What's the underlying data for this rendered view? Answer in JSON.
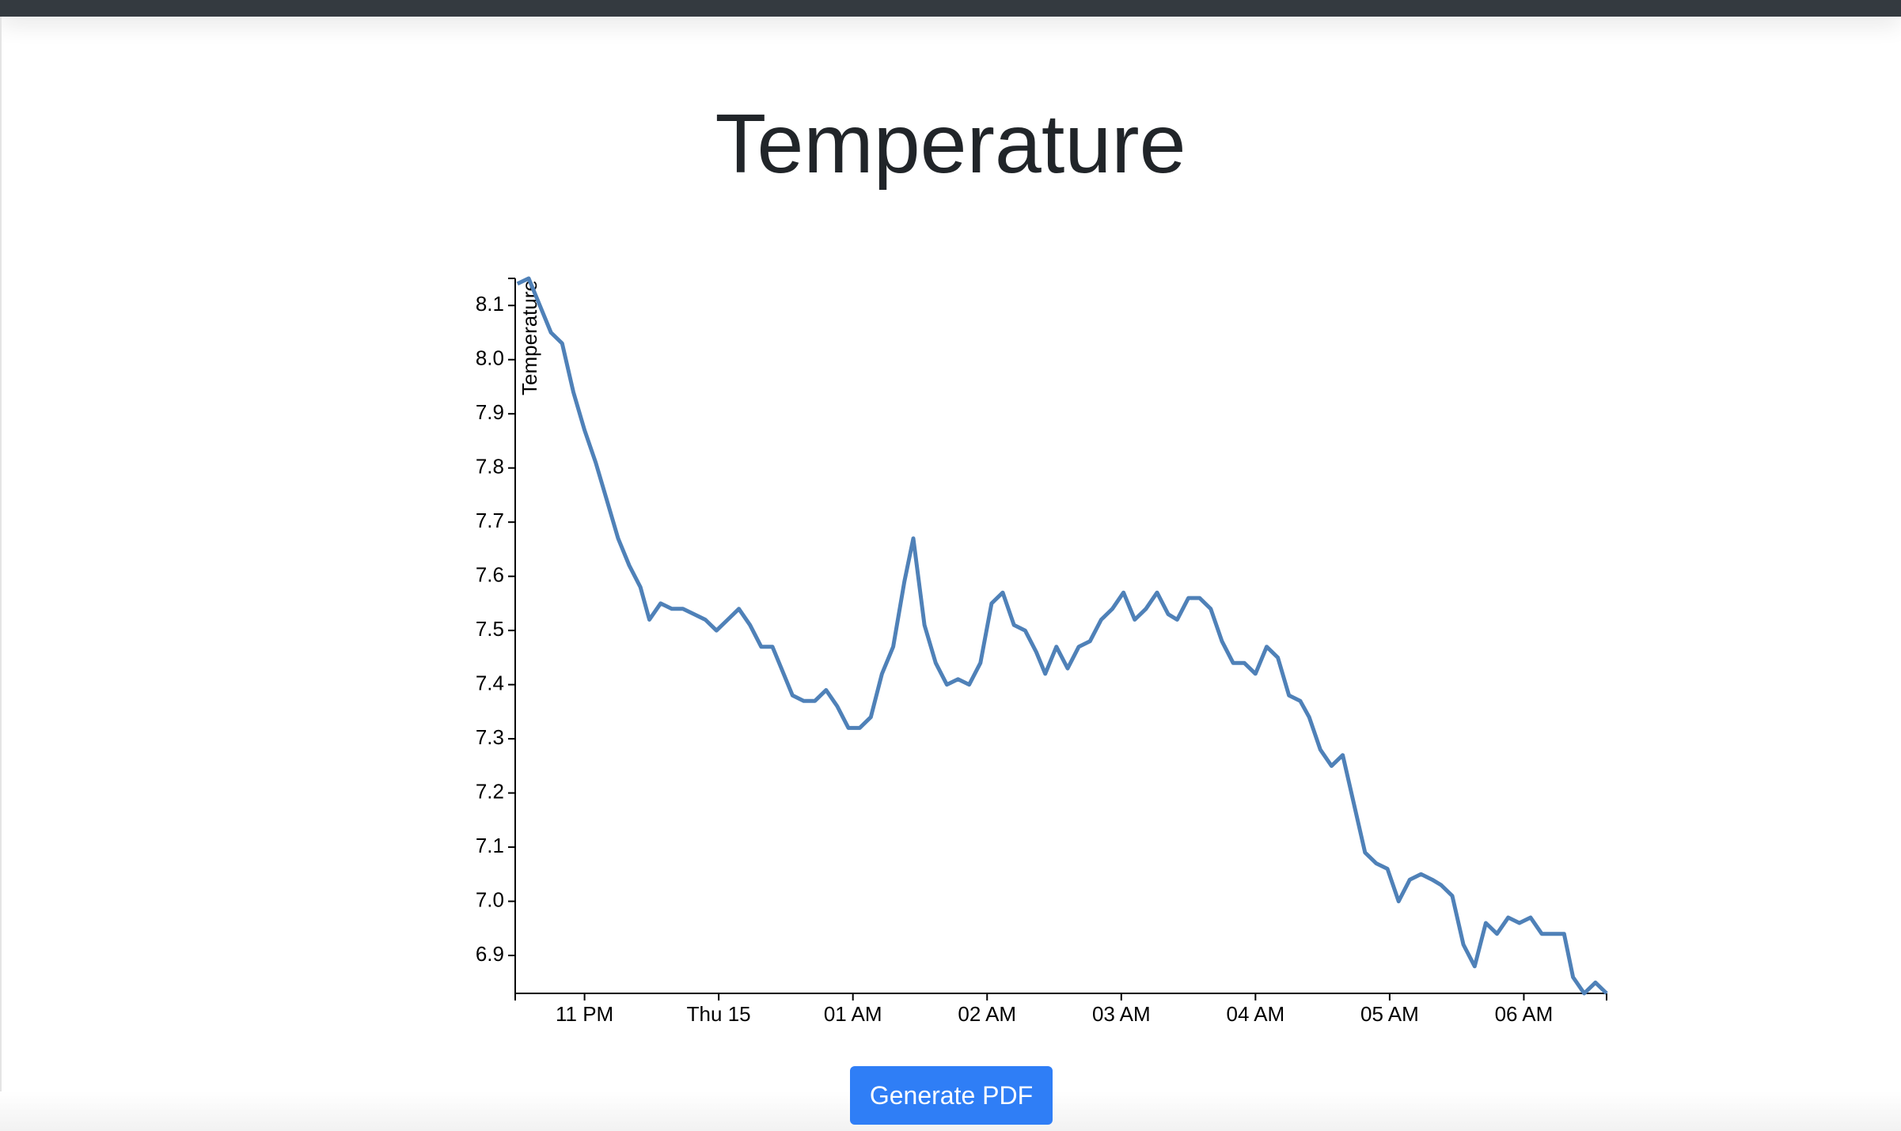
{
  "chart_data": {
    "type": "line",
    "title": "Temperature",
    "y_label": "Temperature",
    "color": "#4f81b8",
    "x": [
      "22:30",
      "22:35",
      "22:40",
      "22:45",
      "22:50",
      "22:55",
      "23:00",
      "23:05",
      "23:10",
      "23:15",
      "23:20",
      "23:25",
      "23:29",
      "23:34",
      "23:39",
      "23:44",
      "23:49",
      "23:54",
      "23:59",
      "00:04",
      "00:09",
      "00:14",
      "00:19",
      "00:24",
      "00:28",
      "00:33",
      "00:38",
      "00:43",
      "00:48",
      "00:53",
      "00:58",
      "01:03",
      "01:08",
      "01:13",
      "01:18",
      "01:23",
      "01:27",
      "01:32",
      "01:37",
      "01:42",
      "01:47",
      "01:52",
      "01:57",
      "02:02",
      "02:07",
      "02:12",
      "02:17",
      "02:22",
      "02:26",
      "02:31",
      "02:36",
      "02:41",
      "02:46",
      "02:51",
      "02:56",
      "03:01",
      "03:06",
      "03:11",
      "03:16",
      "03:21",
      "03:25",
      "03:30",
      "03:35",
      "03:40",
      "03:45",
      "03:50",
      "03:55",
      "04:00",
      "04:05",
      "04:10",
      "04:15",
      "04:20",
      "04:24",
      "04:29",
      "04:34",
      "04:39",
      "04:44",
      "04:49",
      "04:54",
      "04:59",
      "05:04",
      "05:09",
      "05:14",
      "05:19",
      "05:23",
      "05:28",
      "05:33",
      "05:38",
      "05:43",
      "05:48",
      "05:53",
      "05:58",
      "06:03",
      "06:08",
      "06:13",
      "06:18",
      "06:22",
      "06:27",
      "06:32",
      "06:37"
    ],
    "values": [
      8.14,
      8.15,
      8.1,
      8.05,
      8.03,
      7.94,
      7.87,
      7.81,
      7.74,
      7.67,
      7.62,
      7.58,
      7.52,
      7.55,
      7.54,
      7.54,
      7.53,
      7.52,
      7.5,
      7.52,
      7.54,
      7.51,
      7.47,
      7.47,
      7.43,
      7.38,
      7.37,
      7.37,
      7.39,
      7.36,
      7.32,
      7.32,
      7.34,
      7.42,
      7.47,
      7.59,
      7.67,
      7.51,
      7.44,
      7.4,
      7.41,
      7.4,
      7.44,
      7.55,
      7.57,
      7.51,
      7.5,
      7.46,
      7.42,
      7.47,
      7.43,
      7.47,
      7.48,
      7.52,
      7.54,
      7.57,
      7.52,
      7.54,
      7.57,
      7.53,
      7.52,
      7.56,
      7.56,
      7.54,
      7.48,
      7.44,
      7.44,
      7.42,
      7.47,
      7.45,
      7.38,
      7.37,
      7.34,
      7.28,
      7.25,
      7.27,
      7.18,
      7.09,
      7.07,
      7.06,
      7.0,
      7.04,
      7.05,
      7.04,
      7.03,
      7.01,
      6.92,
      6.88,
      6.96,
      6.94,
      6.97,
      6.96,
      6.97,
      6.94,
      6.94,
      6.94,
      6.86,
      6.83,
      6.85,
      6.83
    ],
    "xlim": [
      "22:29",
      "06:37"
    ],
    "xticks": [
      {
        "value": "23:00",
        "label": "11 PM"
      },
      {
        "value": "00:00",
        "label": "Thu 15"
      },
      {
        "value": "01:00",
        "label": "01 AM"
      },
      {
        "value": "02:00",
        "label": "02 AM"
      },
      {
        "value": "03:00",
        "label": "03 AM"
      },
      {
        "value": "04:00",
        "label": "04 AM"
      },
      {
        "value": "05:00",
        "label": "05 AM"
      },
      {
        "value": "06:00",
        "label": "06 AM"
      }
    ],
    "ylim": [
      6.83,
      8.15
    ],
    "yticks": [
      6.9,
      {
        "value": 7,
        "label": "7.0"
      },
      7.1,
      7.2,
      7.3,
      7.4,
      7.5,
      7.6,
      7.7,
      7.8,
      7.9,
      {
        "value": 8,
        "label": "8.0"
      },
      8.1
    ]
  },
  "button": "Generate PDF"
}
